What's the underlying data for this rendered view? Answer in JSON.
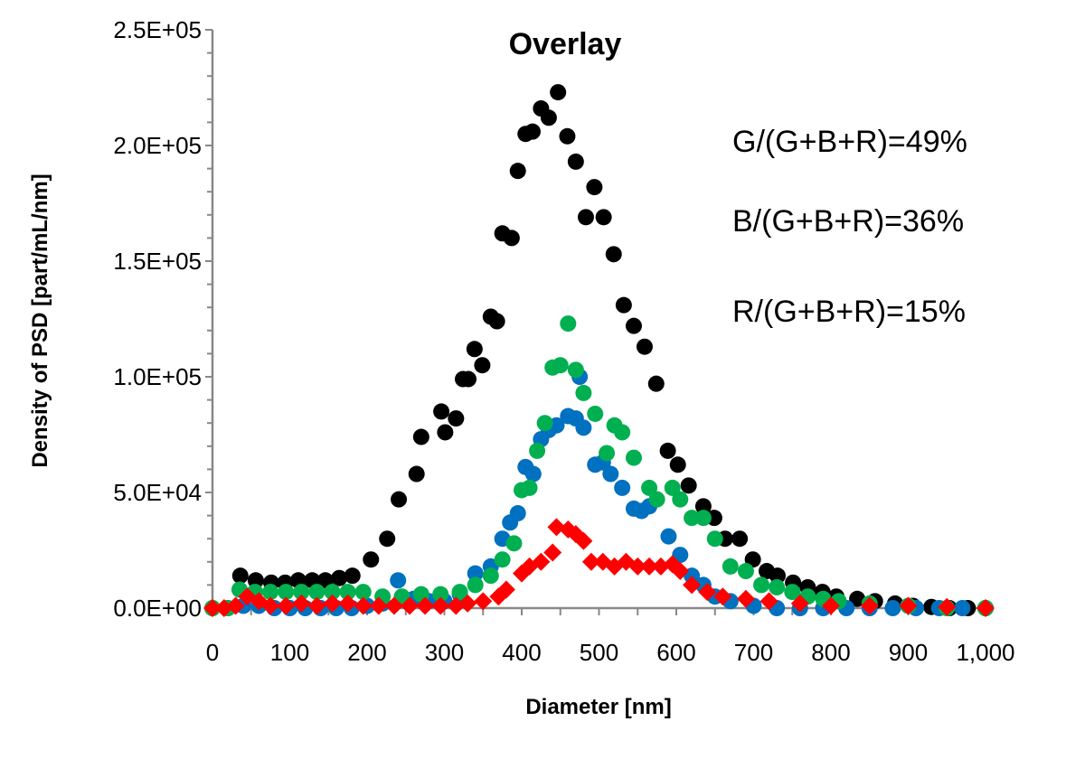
{
  "chart_data": {
    "type": "scatter",
    "title": "Overlay",
    "xlabel": "Diameter [nm]",
    "ylabel": "Density of PSD [part/mL/nm]",
    "xlim": [
      0,
      1000
    ],
    "ylim": [
      0,
      250000
    ],
    "x_ticks": [
      "0",
      "100",
      "200",
      "300",
      "400",
      "500",
      "600",
      "700",
      "800",
      "900",
      "1,000"
    ],
    "y_ticks": [
      "0.0E+00",
      "5.0E+04",
      "1.0E+05",
      "1.5E+05",
      "2.0E+05",
      "2.5E+05"
    ],
    "grid": false,
    "annotations": [
      "G/(G+B+R)=49%",
      "B/(G+B+R)=36%",
      "R/(G+B+R)=15%"
    ],
    "series": [
      {
        "color": "#000000",
        "marker": "circle",
        "points": [
          [
            36,
            14000
          ],
          [
            56,
            12000
          ],
          [
            76,
            11000
          ],
          [
            94,
            11000
          ],
          [
            111,
            12000
          ],
          [
            129,
            12000
          ],
          [
            146,
            12000
          ],
          [
            164,
            13000
          ],
          [
            181,
            14000
          ],
          [
            205,
            21000
          ],
          [
            226,
            30000
          ],
          [
            241,
            47000
          ],
          [
            264,
            58000
          ],
          [
            270,
            74000
          ],
          [
            296,
            85000
          ],
          [
            301,
            76000
          ],
          [
            315,
            82000
          ],
          [
            324,
            99000
          ],
          [
            331,
            99000
          ],
          [
            339,
            112000
          ],
          [
            349,
            105000
          ],
          [
            360,
            126000
          ],
          [
            368,
            124000
          ],
          [
            375,
            162000
          ],
          [
            387,
            160000
          ],
          [
            395,
            189000
          ],
          [
            405,
            205000
          ],
          [
            414,
            206000
          ],
          [
            425,
            216000
          ],
          [
            435,
            212000
          ],
          [
            447,
            223000
          ],
          [
            459,
            204000
          ],
          [
            470,
            193000
          ],
          [
            483,
            169000
          ],
          [
            494,
            182000
          ],
          [
            506,
            169000
          ],
          [
            519,
            153000
          ],
          [
            532,
            131000
          ],
          [
            545,
            122000
          ],
          [
            559,
            113000
          ],
          [
            574,
            97000
          ],
          [
            589,
            68000
          ],
          [
            602,
            62000
          ],
          [
            616,
            53000
          ],
          [
            635,
            44000
          ],
          [
            649,
            39000
          ],
          [
            663,
            30000
          ],
          [
            682,
            30000
          ],
          [
            699,
            21000
          ],
          [
            717,
            16000
          ],
          [
            731,
            14000
          ],
          [
            751,
            11000
          ],
          [
            770,
            9000
          ],
          [
            789,
            7000
          ],
          [
            807,
            5000
          ],
          [
            834,
            4000
          ],
          [
            857,
            3000
          ],
          [
            883,
            2000
          ],
          [
            906,
            1000
          ],
          [
            930,
            500
          ],
          [
            953,
            0
          ],
          [
            977,
            0
          ],
          [
            1000,
            0
          ]
        ]
      },
      {
        "color": "#0070C0",
        "marker": "circle",
        "points": [
          [
            0,
            0
          ],
          [
            20,
            0
          ],
          [
            40,
            1000
          ],
          [
            60,
            1000
          ],
          [
            80,
            0
          ],
          [
            100,
            0
          ],
          [
            120,
            0
          ],
          [
            140,
            0
          ],
          [
            160,
            0
          ],
          [
            180,
            0
          ],
          [
            200,
            1000
          ],
          [
            220,
            2000
          ],
          [
            240,
            12000
          ],
          [
            260,
            4000
          ],
          [
            280,
            3000
          ],
          [
            300,
            3000
          ],
          [
            320,
            6000
          ],
          [
            340,
            15000
          ],
          [
            360,
            18000
          ],
          [
            375,
            30000
          ],
          [
            385,
            37000
          ],
          [
            395,
            41000
          ],
          [
            405,
            61000
          ],
          [
            415,
            58000
          ],
          [
            425,
            73000
          ],
          [
            435,
            77000
          ],
          [
            445,
            79000
          ],
          [
            460,
            83000
          ],
          [
            470,
            82000
          ],
          [
            475,
            100000
          ],
          [
            480,
            78000
          ],
          [
            495,
            62000
          ],
          [
            505,
            63000
          ],
          [
            515,
            58000
          ],
          [
            530,
            52000
          ],
          [
            545,
            43000
          ],
          [
            555,
            42000
          ],
          [
            565,
            44000
          ],
          [
            590,
            31000
          ],
          [
            605,
            23000
          ],
          [
            620,
            14000
          ],
          [
            635,
            10000
          ],
          [
            650,
            5000
          ],
          [
            670,
            3000
          ],
          [
            700,
            1000
          ],
          [
            730,
            0
          ],
          [
            760,
            0
          ],
          [
            790,
            0
          ],
          [
            820,
            0
          ],
          [
            850,
            0
          ],
          [
            880,
            0
          ],
          [
            910,
            0
          ],
          [
            940,
            0
          ],
          [
            970,
            0
          ],
          [
            1000,
            0
          ]
        ]
      },
      {
        "color": "#00B050",
        "marker": "circle",
        "points": [
          [
            0,
            0
          ],
          [
            20,
            0
          ],
          [
            35,
            8000
          ],
          [
            55,
            7000
          ],
          [
            75,
            7000
          ],
          [
            95,
            7000
          ],
          [
            115,
            7000
          ],
          [
            135,
            7000
          ],
          [
            155,
            7000
          ],
          [
            175,
            7000
          ],
          [
            195,
            7000
          ],
          [
            220,
            5000
          ],
          [
            245,
            5000
          ],
          [
            270,
            6000
          ],
          [
            295,
            6000
          ],
          [
            320,
            7000
          ],
          [
            340,
            10000
          ],
          [
            360,
            14000
          ],
          [
            375,
            21000
          ],
          [
            390,
            28000
          ],
          [
            400,
            51000
          ],
          [
            410,
            52000
          ],
          [
            420,
            68000
          ],
          [
            430,
            80000
          ],
          [
            440,
            104000
          ],
          [
            450,
            105000
          ],
          [
            460,
            123000
          ],
          [
            470,
            103000
          ],
          [
            480,
            93000
          ],
          [
            495,
            84000
          ],
          [
            510,
            67000
          ],
          [
            520,
            79000
          ],
          [
            530,
            76000
          ],
          [
            545,
            65000
          ],
          [
            565,
            52000
          ],
          [
            575,
            47000
          ],
          [
            595,
            52000
          ],
          [
            605,
            47000
          ],
          [
            620,
            39000
          ],
          [
            635,
            39000
          ],
          [
            650,
            30000
          ],
          [
            670,
            18000
          ],
          [
            690,
            16000
          ],
          [
            710,
            10000
          ],
          [
            730,
            9000
          ],
          [
            750,
            7000
          ],
          [
            770,
            5000
          ],
          [
            790,
            4000
          ],
          [
            810,
            3000
          ],
          [
            850,
            2000
          ],
          [
            900,
            1000
          ],
          [
            950,
            0
          ],
          [
            1000,
            0
          ]
        ]
      },
      {
        "color": "#FF0000",
        "marker": "diamond",
        "points": [
          [
            0,
            0
          ],
          [
            15,
            0
          ],
          [
            30,
            1000
          ],
          [
            45,
            5000
          ],
          [
            60,
            3000
          ],
          [
            75,
            1000
          ],
          [
            95,
            1000
          ],
          [
            115,
            2000
          ],
          [
            135,
            1000
          ],
          [
            155,
            2000
          ],
          [
            175,
            2000
          ],
          [
            195,
            1000
          ],
          [
            215,
            1000
          ],
          [
            235,
            1000
          ],
          [
            255,
            1000
          ],
          [
            275,
            1000
          ],
          [
            295,
            1000
          ],
          [
            315,
            1000
          ],
          [
            330,
            2000
          ],
          [
            350,
            3000
          ],
          [
            370,
            5000
          ],
          [
            380,
            8000
          ],
          [
            400,
            15000
          ],
          [
            410,
            18000
          ],
          [
            425,
            20000
          ],
          [
            440,
            24000
          ],
          [
            445,
            35000
          ],
          [
            460,
            34000
          ],
          [
            470,
            32000
          ],
          [
            480,
            29000
          ],
          [
            490,
            20000
          ],
          [
            505,
            20000
          ],
          [
            520,
            18000
          ],
          [
            535,
            20000
          ],
          [
            550,
            18000
          ],
          [
            565,
            18000
          ],
          [
            580,
            18000
          ],
          [
            595,
            19000
          ],
          [
            605,
            16000
          ],
          [
            620,
            10000
          ],
          [
            640,
            7000
          ],
          [
            660,
            5000
          ],
          [
            690,
            4000
          ],
          [
            720,
            3000
          ],
          [
            760,
            2000
          ],
          [
            800,
            1000
          ],
          [
            850,
            1000
          ],
          [
            900,
            1000
          ],
          [
            950,
            500
          ],
          [
            1000,
            0
          ]
        ]
      }
    ]
  }
}
